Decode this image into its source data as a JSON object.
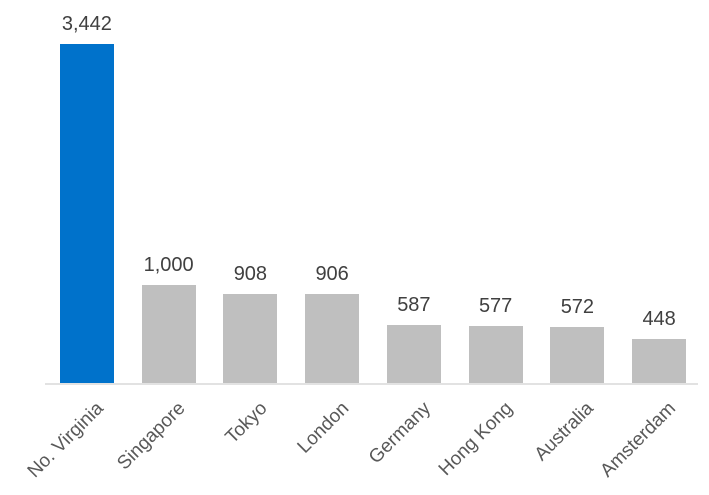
{
  "chart_data": {
    "type": "bar",
    "categories": [
      "No. Virginia",
      "Singapore",
      "Tokyo",
      "London",
      "Germany",
      "Hong Kong",
      "Australia",
      "Amsterdam"
    ],
    "values": [
      3442,
      1000,
      908,
      906,
      587,
      577,
      572,
      448
    ],
    "value_labels": [
      "3,442",
      "1,000",
      "908",
      "906",
      "587",
      "577",
      "572",
      "448"
    ],
    "bar_colors": [
      "#0072CB",
      "#BFBFBF",
      "#BFBFBF",
      "#BFBFBF",
      "#BFBFBF",
      "#BFBFBF",
      "#BFBFBF",
      "#BFBFBF"
    ],
    "highlight_index": 0,
    "ylim": [
      0,
      3442
    ],
    "grid": false,
    "legend": false,
    "y_axis_visible": false,
    "xtick_rotation_deg": 45,
    "colors": {
      "highlight_bar": "#0072CB",
      "default_bar": "#BFBFBF",
      "axis_line": "#E2E2E2",
      "value_label": "#404040",
      "tick_label": "#595959",
      "background": "#FFFFFF"
    }
  }
}
